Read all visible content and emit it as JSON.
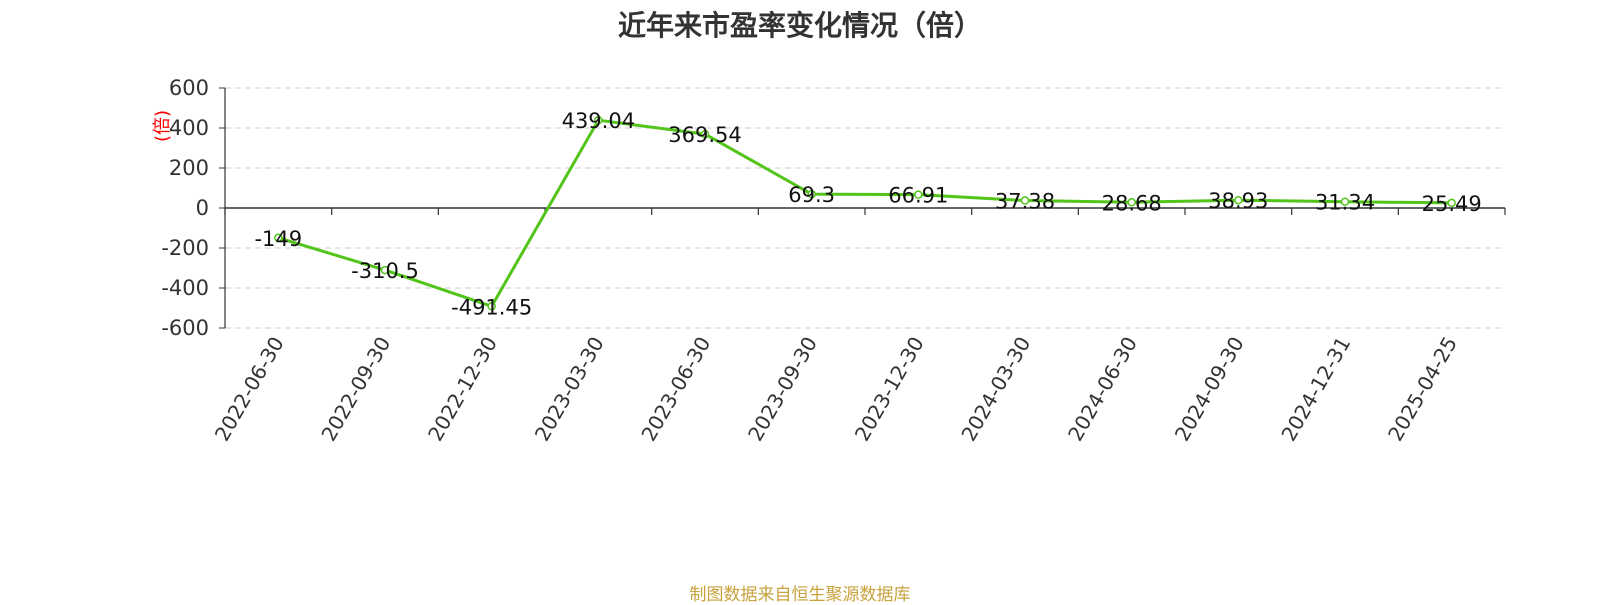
{
  "chart_data": {
    "type": "line",
    "title": "近年来市盈率变化情况（倍）",
    "ylabel": "(倍)",
    "xlabel": "",
    "categories": [
      "2022-06-30",
      "2022-09-30",
      "2022-12-30",
      "2023-03-30",
      "2023-06-30",
      "2023-09-30",
      "2023-12-30",
      "2024-03-30",
      "2024-06-30",
      "2024-09-30",
      "2024-12-31",
      "2025-04-25"
    ],
    "series": [
      {
        "values": [
          -149,
          -310.5,
          -491.45,
          439.04,
          369.54,
          69.3,
          66.91,
          37.38,
          28.68,
          38.93,
          31.34,
          25.49
        ]
      }
    ],
    "data_labels": [
      "-149",
      "-310.5",
      "-491.45",
      "439.04",
      "369.54",
      "69.3",
      "66.91",
      "37.38",
      "28.68",
      "38.93",
      "31.34",
      "25.49"
    ],
    "ylim": [
      -600,
      600
    ],
    "yticks": [
      600,
      400,
      200,
      0,
      -200,
      -400,
      -600
    ],
    "grid": true,
    "legend": "none",
    "colors": {
      "line": "#52c41a",
      "title": "#333333",
      "ylabel": "#ff0000",
      "footer": "#c9a23c",
      "grid": "#cccccc",
      "axis": "#333333"
    }
  },
  "footer": {
    "source": "制图数据来自恒生聚源数据库"
  }
}
